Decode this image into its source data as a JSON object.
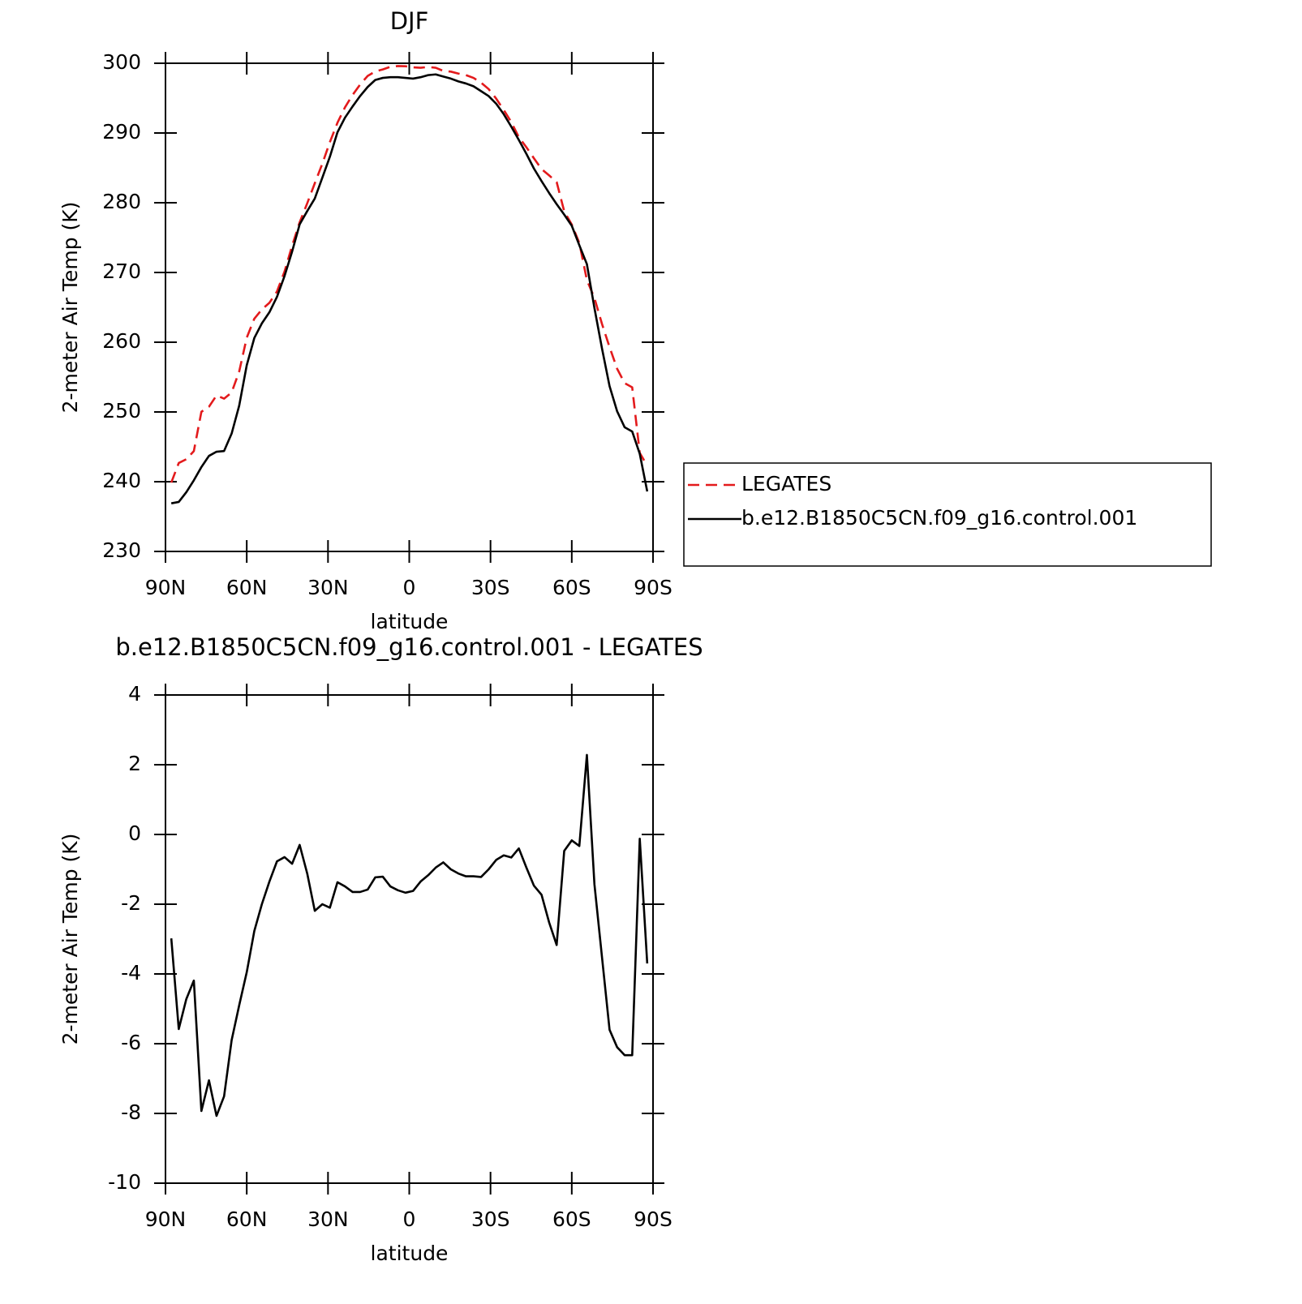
{
  "chart_data": [
    {
      "type": "line",
      "title": "DJF",
      "x_label": "latitude",
      "y_label": "2-meter Air Temp (K)",
      "x": [
        87.86,
        85.1,
        82.31,
        79.53,
        76.74,
        73.95,
        71.16,
        68.37,
        65.58,
        62.79,
        60,
        57.21,
        54.42,
        51.63,
        48.84,
        46.04,
        43.25,
        40.46,
        37.67,
        34.88,
        32.09,
        29.3,
        26.51,
        23.72,
        20.93,
        18.14,
        15.35,
        12.56,
        9.77,
        6.98,
        4.19,
        1.4,
        -1.4,
        -4.19,
        -6.98,
        -9.77,
        -12.56,
        -15.35,
        -18.14,
        -20.93,
        -23.72,
        -26.51,
        -29.3,
        -32.09,
        -34.88,
        -37.67,
        -40.46,
        -43.25,
        -46.04,
        -48.84,
        -51.63,
        -54.42,
        -57.21,
        -60,
        -62.79,
        -65.58,
        -68.37,
        -71.16,
        -73.95,
        -76.74,
        -79.53,
        -82.31,
        -85.1,
        -87.86
      ],
      "series": [
        {
          "name": "LEGATES",
          "color": "#e31a1c",
          "dash": true,
          "values": [
            239.88,
            242.68,
            243.22,
            244.39,
            250.03,
            250.75,
            252.37,
            251.91,
            252.8,
            255.8,
            260.65,
            263.37,
            264.7,
            265.65,
            267.27,
            270.15,
            273.84,
            277.2,
            279.92,
            282.79,
            285.6,
            288.7,
            291.47,
            293.69,
            295.45,
            296.95,
            298.18,
            298.83,
            299.11,
            299.49,
            299.6,
            299.57,
            299.42,
            299.35,
            299.47,
            299.35,
            298.9,
            298.8,
            298.52,
            298.3,
            297.9,
            297.22,
            296.3,
            294.93,
            293.3,
            291.56,
            289.4,
            287.95,
            286.37,
            284.83,
            283.92,
            282.97,
            278.77,
            276.87,
            274.23,
            268.92,
            266.33,
            262.62,
            259.3,
            256.2,
            254.13,
            253.53,
            244.12,
            242.3
          ]
        },
        {
          "name": "b.e12.B1850C5CN.f09_g16.control.001",
          "color": "#000000",
          "dash": false,
          "values": [
            236.9,
            237.1,
            238.5,
            240.2,
            242.1,
            243.7,
            244.3,
            244.4,
            246.9,
            250.9,
            256.7,
            260.6,
            262.7,
            264.3,
            266.5,
            269.5,
            273,
            276.9,
            278.8,
            280.6,
            283.6,
            286.6,
            290.1,
            292.2,
            293.8,
            295.3,
            296.6,
            297.6,
            297.9,
            298,
            298,
            297.9,
            297.8,
            298,
            298.3,
            298.4,
            298.1,
            297.8,
            297.4,
            297.1,
            296.7,
            296,
            295.3,
            294.2,
            292.7,
            290.9,
            289,
            287,
            284.9,
            283.1,
            281.4,
            279.8,
            278.3,
            276.7,
            273.9,
            271.2,
            264.9,
            259.1,
            253.7,
            250.1,
            247.8,
            247.2,
            244,
            238.6
          ]
        }
      ],
      "xlim": [
        90,
        -90
      ],
      "xticks": [
        {
          "value": 90,
          "label": "90N"
        },
        {
          "value": 60,
          "label": "60N"
        },
        {
          "value": 30,
          "label": "30N"
        },
        0,
        {
          "value": -30,
          "label": "30S"
        },
        {
          "value": -60,
          "label": "60S"
        },
        {
          "value": -90,
          "label": "90S"
        }
      ],
      "ylim": [
        230,
        300
      ],
      "yticks": [
        230,
        240,
        250,
        260,
        270,
        280,
        290,
        300
      ],
      "legend": "right"
    },
    {
      "type": "line",
      "title": "b.e12.B1850C5CN.f09_g16.control.001 - LEGATES",
      "x_label": "latitude",
      "y_label": "2-meter Air Temp (K)",
      "x": [
        87.86,
        85.1,
        82.31,
        79.53,
        76.74,
        73.95,
        71.16,
        68.37,
        65.58,
        62.79,
        60,
        57.21,
        54.42,
        51.63,
        48.84,
        46.04,
        43.25,
        40.46,
        37.67,
        34.88,
        32.09,
        29.3,
        26.51,
        23.72,
        20.93,
        18.14,
        15.35,
        12.56,
        9.77,
        6.98,
        4.19,
        1.4,
        -1.4,
        -4.19,
        -6.98,
        -9.77,
        -12.56,
        -15.35,
        -18.14,
        -20.93,
        -23.72,
        -26.51,
        -29.3,
        -32.09,
        -34.88,
        -37.67,
        -40.46,
        -43.25,
        -46.04,
        -48.84,
        -51.63,
        -54.42,
        -57.21,
        -60,
        -62.79,
        -65.58,
        -68.37,
        -71.16,
        -73.95,
        -76.74,
        -79.53,
        -82.31,
        -85.1,
        -87.86
      ],
      "values": [
        -2.98,
        -5.58,
        -4.72,
        -4.19,
        -7.93,
        -7.05,
        -8.07,
        -7.51,
        -5.9,
        -4.9,
        -3.95,
        -2.77,
        -2,
        -1.35,
        -0.77,
        -0.65,
        -0.84,
        -0.3,
        -1.12,
        -2.19,
        -2,
        -2.1,
        -1.37,
        -1.49,
        -1.65,
        -1.65,
        -1.58,
        -1.23,
        -1.21,
        -1.49,
        -1.6,
        -1.67,
        -1.62,
        -1.35,
        -1.17,
        -0.95,
        -0.8,
        -1,
        -1.12,
        -1.2,
        -1.2,
        -1.22,
        -1,
        -0.73,
        -0.6,
        -0.66,
        -0.4,
        -0.95,
        -1.47,
        -1.73,
        -2.52,
        -3.17,
        -0.47,
        -0.17,
        -0.33,
        2.28,
        -1.43,
        -3.52,
        -5.6,
        -6.1,
        -6.33,
        -6.33,
        -0.12,
        -3.7
      ],
      "color": "#000000",
      "xlim": [
        90,
        -90
      ],
      "xticks": [
        {
          "value": 90,
          "label": "90N"
        },
        {
          "value": 60,
          "label": "60N"
        },
        {
          "value": 30,
          "label": "30N"
        },
        0,
        {
          "value": -30,
          "label": "30S"
        },
        {
          "value": -60,
          "label": "60S"
        },
        {
          "value": -90,
          "label": "90S"
        }
      ],
      "ylim": [
        -10,
        4
      ],
      "yticks": [
        -10,
        -8,
        -6,
        -4,
        -2,
        0,
        2,
        4
      ]
    }
  ]
}
